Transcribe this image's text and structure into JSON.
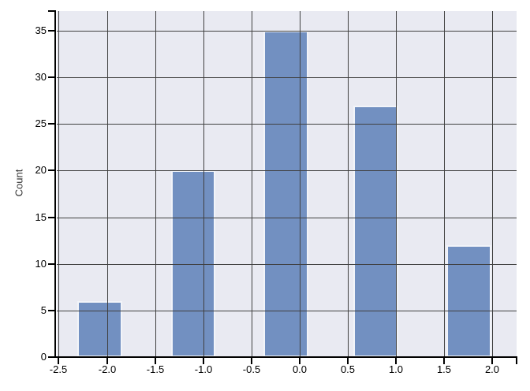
{
  "chart_data": {
    "type": "bar",
    "subtype": "histogram",
    "title": "",
    "xlabel": "",
    "ylabel": "Count",
    "categories": [
      -2.1,
      -1.1,
      -0.15,
      0.8,
      1.75
    ],
    "values": [
      6,
      20,
      35,
      27,
      12
    ],
    "bars": [
      {
        "x_left": -2.31,
        "x_right": -1.84,
        "count": 6
      },
      {
        "x_left": -1.33,
        "x_right": -0.87,
        "count": 20
      },
      {
        "x_left": -0.38,
        "x_right": 0.09,
        "count": 35
      },
      {
        "x_left": 0.56,
        "x_right": 1.03,
        "count": 27
      },
      {
        "x_left": 1.52,
        "x_right": 1.99,
        "count": 12
      }
    ],
    "x_ticks": [
      -2.5,
      -2.0,
      -1.5,
      -1.0,
      -0.5,
      0.0,
      0.5,
      1.0,
      1.5,
      2.0
    ],
    "x_tick_labels": [
      "-2.5",
      "-2.0",
      "-1.5",
      "-1.0",
      "-0.5",
      "0.0",
      "0.5",
      "1.0",
      "1.5",
      "2.0"
    ],
    "y_ticks": [
      0,
      5,
      10,
      15,
      20,
      25,
      30,
      35
    ],
    "y_tick_labels": [
      "0",
      "5",
      "10",
      "15",
      "20",
      "25",
      "30",
      "35"
    ],
    "xlim": [
      -2.52,
      2.25
    ],
    "ylim": [
      0,
      37.1
    ],
    "grid": true,
    "legend": "none",
    "colors": {
      "bar_fill": "#7290c1",
      "bar_border": "#f2f4f9",
      "plot_background": "#e9eaf2",
      "gridline": "#404040",
      "axis": "#000000",
      "tick_label": "#000000",
      "axis_label": "#333333",
      "outer_background": "#ffffff"
    }
  }
}
